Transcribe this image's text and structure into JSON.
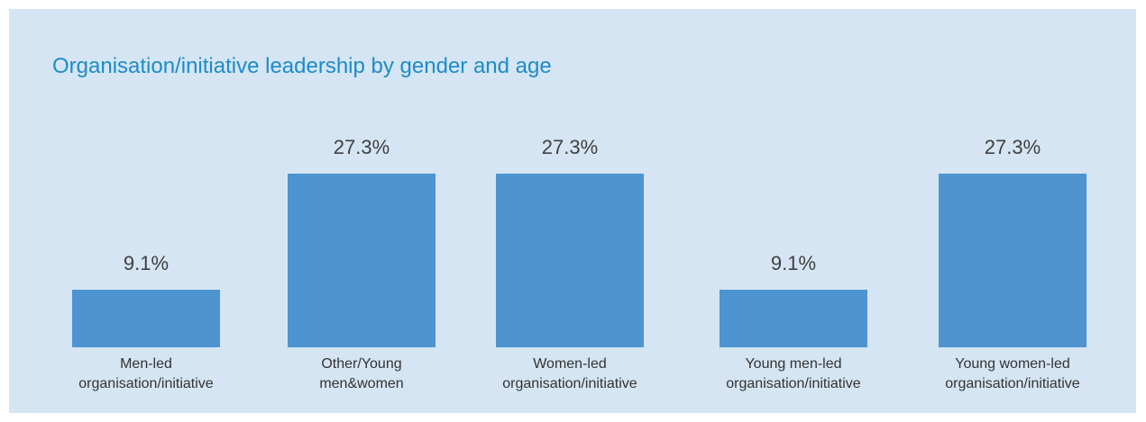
{
  "chart_data": {
    "type": "bar",
    "title": "Organisation/initiative leadership by gender and age",
    "categories": [
      "Men-led organisation/initiative",
      "Other/Young men&women",
      "Women-led organisation/initiative",
      "Young men-led organisation/initiative",
      "Young women-led organisation/initiative"
    ],
    "values": [
      9.1,
      27.3,
      27.3,
      9.1,
      27.3
    ],
    "value_labels": [
      "9.1%",
      "27.3%",
      "27.3%",
      "9.1%",
      "27.3%"
    ],
    "color": "#4d94d1"
  }
}
